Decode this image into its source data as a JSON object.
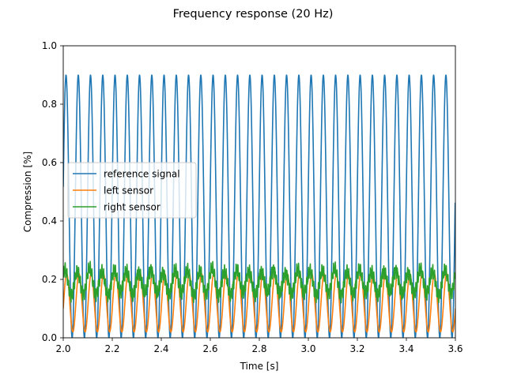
{
  "chart_data": {
    "type": "line",
    "title": "Frequency response (20 Hz)",
    "xlabel": "Time [s]",
    "ylabel": "Compression [%]",
    "xlim": [
      2.0,
      3.6
    ],
    "ylim": [
      0.0,
      1.0
    ],
    "x_ticks": [
      "2.0",
      "2.2",
      "2.4",
      "2.6",
      "2.8",
      "3.0",
      "3.2",
      "3.4",
      "3.6"
    ],
    "y_ticks": [
      "0.0",
      "0.2",
      "0.4",
      "0.6",
      "0.8",
      "1.0"
    ],
    "grid": false,
    "legend_position": "center-left",
    "frequency_hz": 20,
    "series": [
      {
        "name": "reference signal",
        "color": "#1f77b4",
        "waveform": "sine",
        "frequency_hz": 20,
        "min": 0.0,
        "max": 0.9,
        "x_end": 3.6,
        "y_end": 0.44
      },
      {
        "name": "left sensor",
        "color": "#ff7f0e",
        "waveform": "sine",
        "frequency_hz": 20,
        "min": 0.02,
        "max": 0.22
      },
      {
        "name": "right sensor",
        "color": "#2ca02c",
        "waveform": "noisy-sine",
        "frequency_hz": 20,
        "min": 0.15,
        "max": 0.23
      }
    ]
  }
}
